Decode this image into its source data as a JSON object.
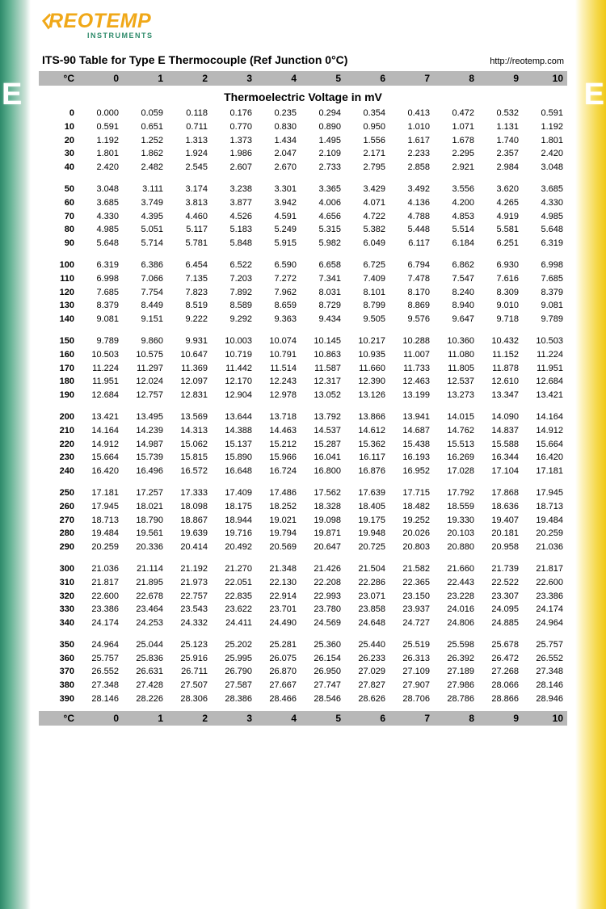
{
  "logo": {
    "main": "REOTEMP",
    "sub": "INSTRUMENTS"
  },
  "title": "ITS-90 Table for Type E Thermocouple (Ref Junction 0°C)",
  "url": "http://reotemp.com",
  "edge_letter": "E",
  "column_unit": "°C",
  "columns": [
    "0",
    "1",
    "2",
    "3",
    "4",
    "5",
    "6",
    "7",
    "8",
    "9",
    "10"
  ],
  "subtitle": "Thermoelectric Voltage in mV",
  "colors": {
    "left_gradient_start": "#2d8a6a",
    "right_gradient_start": "#f0c818",
    "header_bg": "#b8b8b8",
    "logo_orange": "#f0a818",
    "logo_green": "#2d8a6a"
  },
  "groups": [
    [
      {
        "t": "0",
        "v": [
          "0.000",
          "0.059",
          "0.118",
          "0.176",
          "0.235",
          "0.294",
          "0.354",
          "0.413",
          "0.472",
          "0.532",
          "0.591"
        ]
      },
      {
        "t": "10",
        "v": [
          "0.591",
          "0.651",
          "0.711",
          "0.770",
          "0.830",
          "0.890",
          "0.950",
          "1.010",
          "1.071",
          "1.131",
          "1.192"
        ]
      },
      {
        "t": "20",
        "v": [
          "1.192",
          "1.252",
          "1.313",
          "1.373",
          "1.434",
          "1.495",
          "1.556",
          "1.617",
          "1.678",
          "1.740",
          "1.801"
        ]
      },
      {
        "t": "30",
        "v": [
          "1.801",
          "1.862",
          "1.924",
          "1.986",
          "2.047",
          "2.109",
          "2.171",
          "2.233",
          "2.295",
          "2.357",
          "2.420"
        ]
      },
      {
        "t": "40",
        "v": [
          "2.420",
          "2.482",
          "2.545",
          "2.607",
          "2.670",
          "2.733",
          "2.795",
          "2.858",
          "2.921",
          "2.984",
          "3.048"
        ]
      }
    ],
    [
      {
        "t": "50",
        "v": [
          "3.048",
          "3.111",
          "3.174",
          "3.238",
          "3.301",
          "3.365",
          "3.429",
          "3.492",
          "3.556",
          "3.620",
          "3.685"
        ]
      },
      {
        "t": "60",
        "v": [
          "3.685",
          "3.749",
          "3.813",
          "3.877",
          "3.942",
          "4.006",
          "4.071",
          "4.136",
          "4.200",
          "4.265",
          "4.330"
        ]
      },
      {
        "t": "70",
        "v": [
          "4.330",
          "4.395",
          "4.460",
          "4.526",
          "4.591",
          "4.656",
          "4.722",
          "4.788",
          "4.853",
          "4.919",
          "4.985"
        ]
      },
      {
        "t": "80",
        "v": [
          "4.985",
          "5.051",
          "5.117",
          "5.183",
          "5.249",
          "5.315",
          "5.382",
          "5.448",
          "5.514",
          "5.581",
          "5.648"
        ]
      },
      {
        "t": "90",
        "v": [
          "5.648",
          "5.714",
          "5.781",
          "5.848",
          "5.915",
          "5.982",
          "6.049",
          "6.117",
          "6.184",
          "6.251",
          "6.319"
        ]
      }
    ],
    [
      {
        "t": "100",
        "v": [
          "6.319",
          "6.386",
          "6.454",
          "6.522",
          "6.590",
          "6.658",
          "6.725",
          "6.794",
          "6.862",
          "6.930",
          "6.998"
        ]
      },
      {
        "t": "110",
        "v": [
          "6.998",
          "7.066",
          "7.135",
          "7.203",
          "7.272",
          "7.341",
          "7.409",
          "7.478",
          "7.547",
          "7.616",
          "7.685"
        ]
      },
      {
        "t": "120",
        "v": [
          "7.685",
          "7.754",
          "7.823",
          "7.892",
          "7.962",
          "8.031",
          "8.101",
          "8.170",
          "8.240",
          "8.309",
          "8.379"
        ]
      },
      {
        "t": "130",
        "v": [
          "8.379",
          "8.449",
          "8.519",
          "8.589",
          "8.659",
          "8.729",
          "8.799",
          "8.869",
          "8.940",
          "9.010",
          "9.081"
        ]
      },
      {
        "t": "140",
        "v": [
          "9.081",
          "9.151",
          "9.222",
          "9.292",
          "9.363",
          "9.434",
          "9.505",
          "9.576",
          "9.647",
          "9.718",
          "9.789"
        ]
      }
    ],
    [
      {
        "t": "150",
        "v": [
          "9.789",
          "9.860",
          "9.931",
          "10.003",
          "10.074",
          "10.145",
          "10.217",
          "10.288",
          "10.360",
          "10.432",
          "10.503"
        ]
      },
      {
        "t": "160",
        "v": [
          "10.503",
          "10.575",
          "10.647",
          "10.719",
          "10.791",
          "10.863",
          "10.935",
          "11.007",
          "11.080",
          "11.152",
          "11.224"
        ]
      },
      {
        "t": "170",
        "v": [
          "11.224",
          "11.297",
          "11.369",
          "11.442",
          "11.514",
          "11.587",
          "11.660",
          "11.733",
          "11.805",
          "11.878",
          "11.951"
        ]
      },
      {
        "t": "180",
        "v": [
          "11.951",
          "12.024",
          "12.097",
          "12.170",
          "12.243",
          "12.317",
          "12.390",
          "12.463",
          "12.537",
          "12.610",
          "12.684"
        ]
      },
      {
        "t": "190",
        "v": [
          "12.684",
          "12.757",
          "12.831",
          "12.904",
          "12.978",
          "13.052",
          "13.126",
          "13.199",
          "13.273",
          "13.347",
          "13.421"
        ]
      }
    ],
    [
      {
        "t": "200",
        "v": [
          "13.421",
          "13.495",
          "13.569",
          "13.644",
          "13.718",
          "13.792",
          "13.866",
          "13.941",
          "14.015",
          "14.090",
          "14.164"
        ]
      },
      {
        "t": "210",
        "v": [
          "14.164",
          "14.239",
          "14.313",
          "14.388",
          "14.463",
          "14.537",
          "14.612",
          "14.687",
          "14.762",
          "14.837",
          "14.912"
        ]
      },
      {
        "t": "220",
        "v": [
          "14.912",
          "14.987",
          "15.062",
          "15.137",
          "15.212",
          "15.287",
          "15.362",
          "15.438",
          "15.513",
          "15.588",
          "15.664"
        ]
      },
      {
        "t": "230",
        "v": [
          "15.664",
          "15.739",
          "15.815",
          "15.890",
          "15.966",
          "16.041",
          "16.117",
          "16.193",
          "16.269",
          "16.344",
          "16.420"
        ]
      },
      {
        "t": "240",
        "v": [
          "16.420",
          "16.496",
          "16.572",
          "16.648",
          "16.724",
          "16.800",
          "16.876",
          "16.952",
          "17.028",
          "17.104",
          "17.181"
        ]
      }
    ],
    [
      {
        "t": "250",
        "v": [
          "17.181",
          "17.257",
          "17.333",
          "17.409",
          "17.486",
          "17.562",
          "17.639",
          "17.715",
          "17.792",
          "17.868",
          "17.945"
        ]
      },
      {
        "t": "260",
        "v": [
          "17.945",
          "18.021",
          "18.098",
          "18.175",
          "18.252",
          "18.328",
          "18.405",
          "18.482",
          "18.559",
          "18.636",
          "18.713"
        ]
      },
      {
        "t": "270",
        "v": [
          "18.713",
          "18.790",
          "18.867",
          "18.944",
          "19.021",
          "19.098",
          "19.175",
          "19.252",
          "19.330",
          "19.407",
          "19.484"
        ]
      },
      {
        "t": "280",
        "v": [
          "19.484",
          "19.561",
          "19.639",
          "19.716",
          "19.794",
          "19.871",
          "19.948",
          "20.026",
          "20.103",
          "20.181",
          "20.259"
        ]
      },
      {
        "t": "290",
        "v": [
          "20.259",
          "20.336",
          "20.414",
          "20.492",
          "20.569",
          "20.647",
          "20.725",
          "20.803",
          "20.880",
          "20.958",
          "21.036"
        ]
      }
    ],
    [
      {
        "t": "300",
        "v": [
          "21.036",
          "21.114",
          "21.192",
          "21.270",
          "21.348",
          "21.426",
          "21.504",
          "21.582",
          "21.660",
          "21.739",
          "21.817"
        ]
      },
      {
        "t": "310",
        "v": [
          "21.817",
          "21.895",
          "21.973",
          "22.051",
          "22.130",
          "22.208",
          "22.286",
          "22.365",
          "22.443",
          "22.522",
          "22.600"
        ]
      },
      {
        "t": "320",
        "v": [
          "22.600",
          "22.678",
          "22.757",
          "22.835",
          "22.914",
          "22.993",
          "23.071",
          "23.150",
          "23.228",
          "23.307",
          "23.386"
        ]
      },
      {
        "t": "330",
        "v": [
          "23.386",
          "23.464",
          "23.543",
          "23.622",
          "23.701",
          "23.780",
          "23.858",
          "23.937",
          "24.016",
          "24.095",
          "24.174"
        ]
      },
      {
        "t": "340",
        "v": [
          "24.174",
          "24.253",
          "24.332",
          "24.411",
          "24.490",
          "24.569",
          "24.648",
          "24.727",
          "24.806",
          "24.885",
          "24.964"
        ]
      }
    ],
    [
      {
        "t": "350",
        "v": [
          "24.964",
          "25.044",
          "25.123",
          "25.202",
          "25.281",
          "25.360",
          "25.440",
          "25.519",
          "25.598",
          "25.678",
          "25.757"
        ]
      },
      {
        "t": "360",
        "v": [
          "25.757",
          "25.836",
          "25.916",
          "25.995",
          "26.075",
          "26.154",
          "26.233",
          "26.313",
          "26.392",
          "26.472",
          "26.552"
        ]
      },
      {
        "t": "370",
        "v": [
          "26.552",
          "26.631",
          "26.711",
          "26.790",
          "26.870",
          "26.950",
          "27.029",
          "27.109",
          "27.189",
          "27.268",
          "27.348"
        ]
      },
      {
        "t": "380",
        "v": [
          "27.348",
          "27.428",
          "27.507",
          "27.587",
          "27.667",
          "27.747",
          "27.827",
          "27.907",
          "27.986",
          "28.066",
          "28.146"
        ]
      },
      {
        "t": "390",
        "v": [
          "28.146",
          "28.226",
          "28.306",
          "28.386",
          "28.466",
          "28.546",
          "28.626",
          "28.706",
          "28.786",
          "28.866",
          "28.946"
        ]
      }
    ]
  ]
}
